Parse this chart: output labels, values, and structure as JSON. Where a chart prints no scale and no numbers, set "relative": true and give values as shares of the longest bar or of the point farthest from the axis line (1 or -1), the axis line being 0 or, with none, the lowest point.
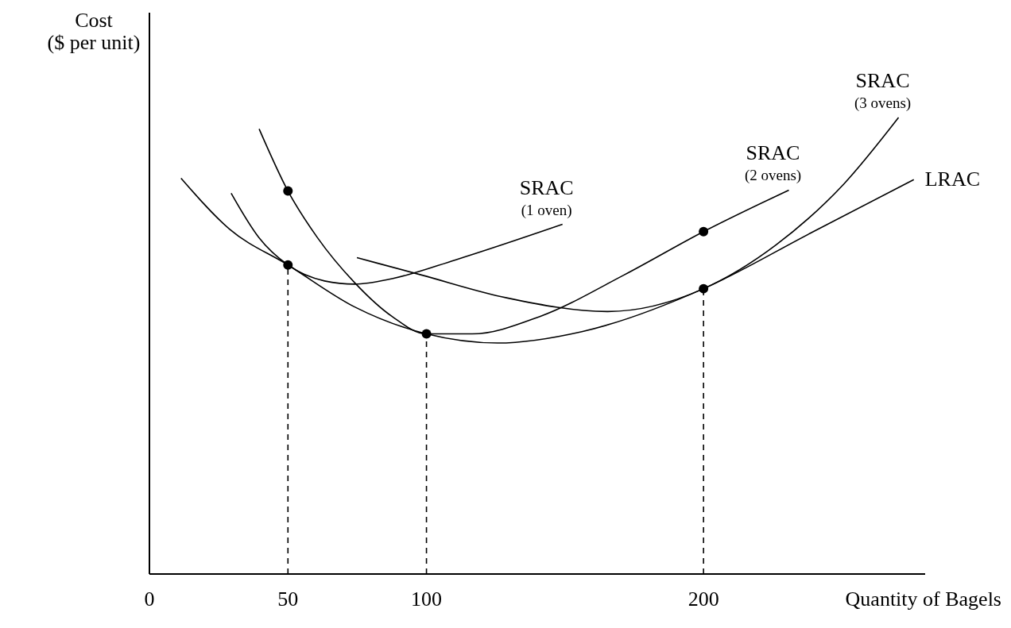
{
  "chart_data": {
    "type": "line",
    "relative": true,
    "xlabel": "Quantity of Bagels",
    "ylabel": "Cost\n($ per unit)",
    "xlim": [
      0,
      280
    ],
    "xticks": [
      0,
      50,
      100,
      200
    ],
    "grid": false,
    "marker": "none",
    "line_style": "solid",
    "series": [
      {
        "name": "LRAC",
        "color": "#000000",
        "x": [
          11.4,
          29.0,
          50,
          74.1,
          100,
          125.6,
          156.1,
          200,
          238.4,
          275.9
        ],
        "values": [
          0.867,
          0.755,
          0.677,
          0.585,
          0.526,
          0.506,
          0.531,
          0.625,
          0.746,
          0.864
        ]
      },
      {
        "name": "SRAC\n(1 oven)",
        "color": "#000000",
        "x": [
          29.5,
          39.4,
          50,
          63.2,
          74.1,
          87.6,
          110.4,
          149.1
        ],
        "values": [
          0.834,
          0.738,
          0.677,
          0.642,
          0.635,
          0.647,
          0.688,
          0.766
        ]
      },
      {
        "name": "SRAC\n(2 ovens)",
        "color": "#000000",
        "x": [
          39.6,
          50,
          60.5,
          74.1,
          87.6,
          100,
          116.5,
          140.9,
          171.3,
          200,
          230.8
        ],
        "values": [
          0.975,
          0.839,
          0.738,
          0.638,
          0.564,
          0.526,
          0.526,
          0.564,
          0.655,
          0.75,
          0.841
        ]
      },
      {
        "name": "SRAC\n(3 ovens)",
        "color": "#000000",
        "x": [
          74.9,
          98.2,
          128.9,
          165.5,
          200,
          226.2,
          250.6,
          270.4
        ],
        "values": [
          0.693,
          0.655,
          0.605,
          0.575,
          0.625,
          0.721,
          0.854,
          1.0
        ]
      },
      {
        "type": "scatter",
        "marker": "circle",
        "color": "#000000",
        "x": [
          50,
          50,
          100,
          200,
          200
        ],
        "values": [
          0.839,
          0.677,
          0.526,
          0.75,
          0.625
        ]
      },
      {
        "line_style": "dashed",
        "color": "#000000",
        "x": [
          50,
          50
        ],
        "values": [
          0,
          0.677
        ]
      },
      {
        "line_style": "dashed",
        "color": "#000000",
        "x": [
          100,
          100
        ],
        "values": [
          0,
          0.526
        ]
      },
      {
        "line_style": "dashed",
        "color": "#000000",
        "x": [
          200,
          200
        ],
        "values": [
          0,
          0.625
        ]
      }
    ]
  }
}
